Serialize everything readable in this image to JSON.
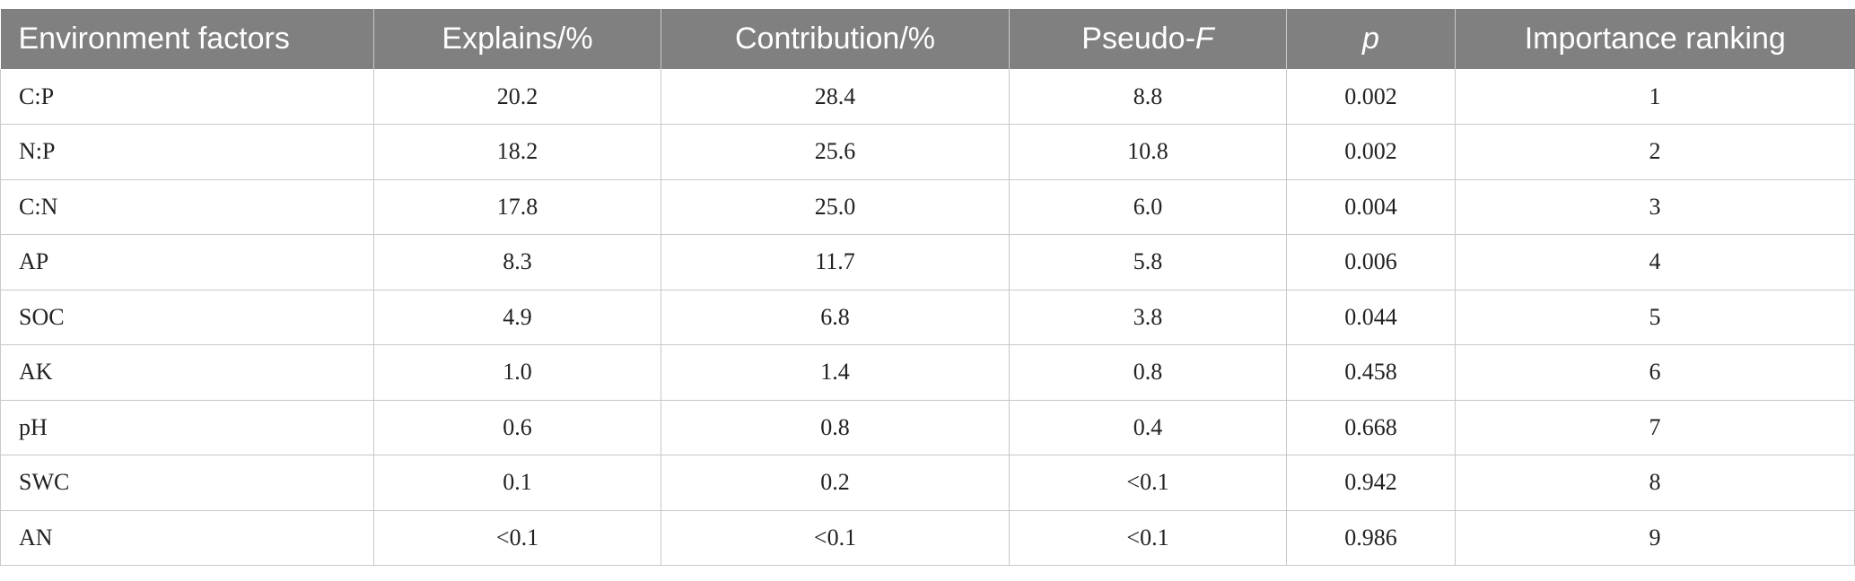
{
  "table": {
    "headers": {
      "factor": "Environment factors",
      "explains": "Explains/%",
      "contribution": "Contribution/%",
      "pseudo_prefix": "Pseudo-",
      "pseudo_italic": "F",
      "p": "p",
      "ranking": "Importance ranking"
    },
    "rows": [
      [
        "C:P",
        "20.2",
        "28.4",
        "8.8",
        "0.002",
        "1"
      ],
      [
        "N:P",
        "18.2",
        "25.6",
        "10.8",
        "0.002",
        "2"
      ],
      [
        "C:N",
        "17.8",
        "25.0",
        "6.0",
        "0.004",
        "3"
      ],
      [
        "AP",
        "8.3",
        "11.7",
        "5.8",
        "0.006",
        "4"
      ],
      [
        "SOC",
        "4.9",
        "6.8",
        "3.8",
        "0.044",
        "5"
      ],
      [
        "AK",
        "1.0",
        "1.4",
        "0.8",
        "0.458",
        "6"
      ],
      [
        "pH",
        "0.6",
        "0.8",
        "0.4",
        "0.668",
        "7"
      ],
      [
        "SWC",
        "0.1",
        "0.2",
        "<0.1",
        "0.942",
        "8"
      ],
      [
        "AN",
        "<0.1",
        "<0.1",
        "<0.1",
        "0.986",
        "9"
      ]
    ]
  }
}
